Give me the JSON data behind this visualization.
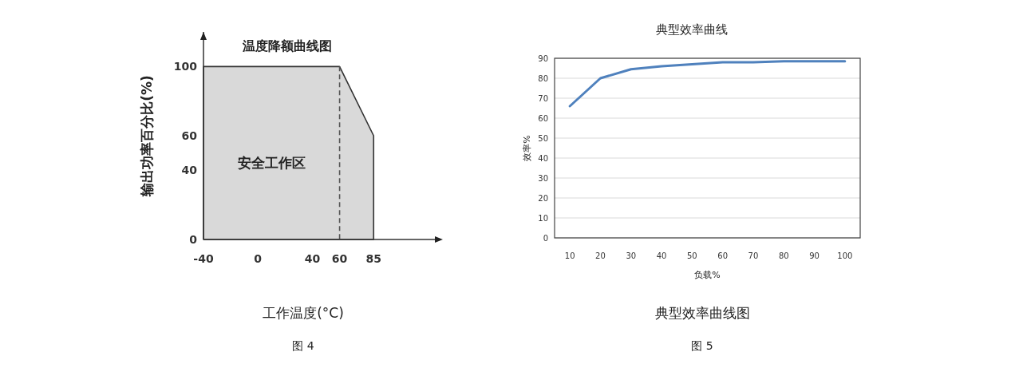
{
  "chart_data": [
    {
      "type": "area",
      "title": "温度降额曲线图",
      "xlabel": "工作温度(°C)",
      "ylabel": "输出功率百分比(%)",
      "x": [
        -40,
        60,
        85
      ],
      "values": [
        100,
        100,
        60
      ],
      "color": "#d9d9d9",
      "xlim": [
        -40,
        130
      ],
      "xticks": [
        -40,
        0,
        40,
        60,
        85
      ],
      "ylim": [
        0,
        120
      ],
      "yticks": [
        0,
        40,
        60,
        100
      ],
      "ref_lines": [
        {
          "axis": "x",
          "value": 60,
          "color": "#555555",
          "line_style": "dashed"
        }
      ],
      "annotations": [
        "安全工作区",
        "图 4"
      ],
      "grid": false
    },
    {
      "type": "line",
      "title": "典型效率曲线",
      "xlabel": "负载%",
      "ylabel": "效率%",
      "x": [
        10,
        20,
        30,
        40,
        50,
        60,
        70,
        80,
        90,
        100
      ],
      "series": [
        {
          "color": "#4f81bd",
          "values": [
            66,
            80,
            84.5,
            86,
            87,
            88,
            88,
            88.5,
            88.5,
            88.5
          ]
        }
      ],
      "xlim": [
        5,
        105
      ],
      "xticks": [
        10,
        20,
        30,
        40,
        50,
        60,
        70,
        80,
        90,
        100
      ],
      "ylim": [
        0,
        90
      ],
      "yticks": [
        0,
        10,
        20,
        30,
        40,
        50,
        60,
        70,
        80,
        90
      ],
      "grid": "y",
      "annotations": [
        "典型效率曲线图",
        "图 5"
      ]
    }
  ]
}
